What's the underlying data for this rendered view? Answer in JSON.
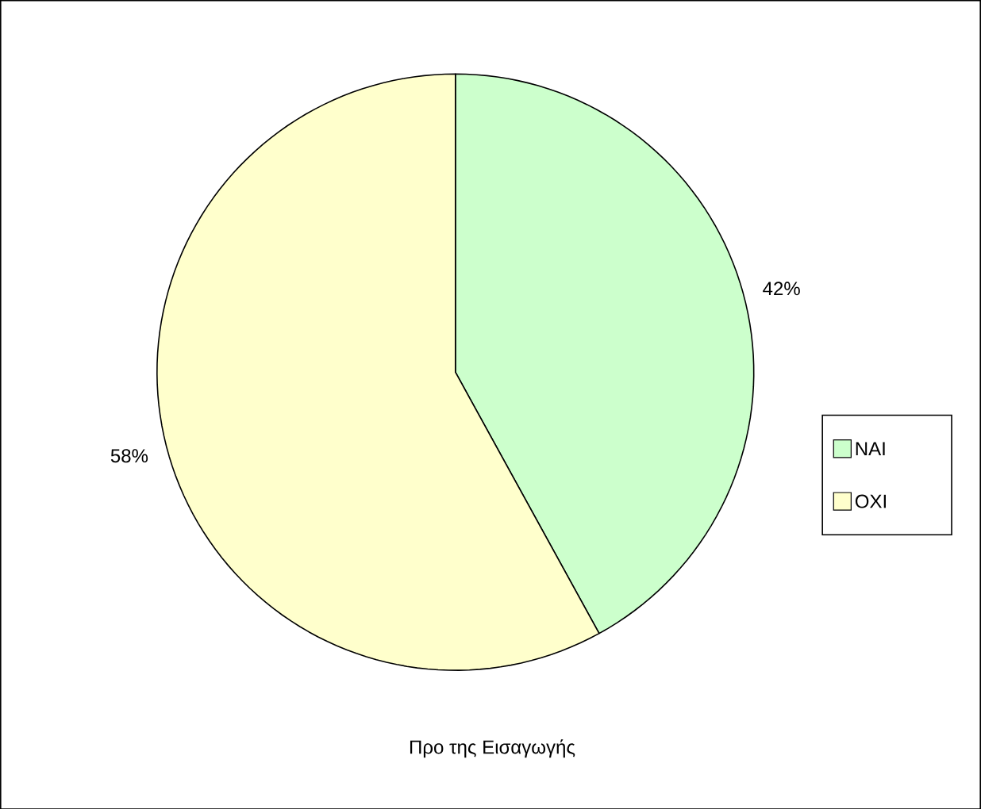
{
  "chart_data": {
    "type": "pie",
    "title": "Προ της Εισαγωγής",
    "categories": [
      "ΝΑΙ",
      "ΟΧΙ"
    ],
    "values": [
      42,
      58
    ],
    "value_labels": [
      "42%",
      "58%"
    ],
    "colors": [
      "#ccffcc",
      "#ffffcc"
    ],
    "legend": "right"
  }
}
